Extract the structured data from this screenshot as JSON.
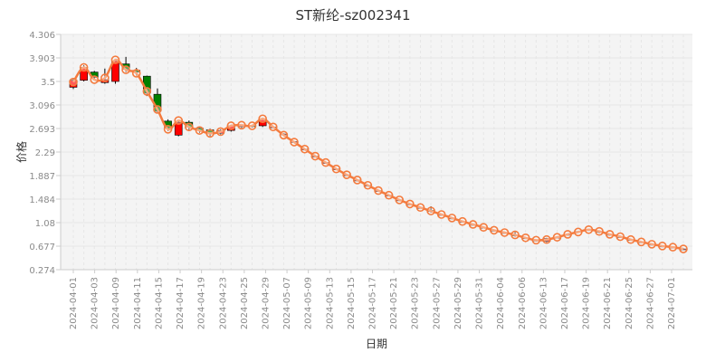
{
  "chart_data": {
    "type": "candlestick",
    "title": "ST新纶-sz002341",
    "xlabel": "日期",
    "ylabel": "价格",
    "ylim": [
      0.274,
      4.306
    ],
    "y_ticks": [
      "4.306",
      "3.903",
      "3.5",
      "3.096",
      "2.693",
      "2.29",
      "1.887",
      "1.484",
      "1.08",
      "0.677",
      "0.274"
    ],
    "x_tick_labels": [
      "2024-04-01",
      "2024-04-03",
      "2024-04-09",
      "2024-04-11",
      "2024-04-15",
      "2024-04-17",
      "2024-04-19",
      "2024-04-23",
      "2024-04-25",
      "2024-04-29",
      "2024-05-07",
      "2024-05-09",
      "2024-05-13",
      "2024-05-15",
      "2024-05-17",
      "2024-05-21",
      "2024-05-23",
      "2024-05-27",
      "2024-05-29",
      "2024-05-31",
      "2024-06-04",
      "2024-06-06",
      "2024-06-13",
      "2024-06-17",
      "2024-06-19",
      "2024-06-21",
      "2024-06-25",
      "2024-06-27",
      "2024-07-01"
    ],
    "colors": {
      "up": "#ff0000",
      "down": "#008000",
      "line": "#f47b3e",
      "grid": "#e6e6e6",
      "plot_bg": "#f4f4f4"
    },
    "ohlc": [
      [
        3.4,
        3.52,
        3.37,
        3.55
      ],
      [
        3.52,
        3.74,
        3.5,
        3.78
      ],
      [
        3.66,
        3.57,
        3.53,
        3.68
      ],
      [
        3.48,
        3.53,
        3.46,
        3.72
      ],
      [
        3.5,
        3.85,
        3.46,
        3.88
      ],
      [
        3.8,
        3.71,
        3.66,
        3.92
      ],
      [
        3.69,
        3.66,
        3.6,
        3.73
      ],
      [
        3.59,
        3.3,
        3.25,
        3.6
      ],
      [
        3.28,
        2.99,
        2.96,
        3.38
      ],
      [
        2.82,
        2.7,
        2.65,
        2.85
      ],
      [
        2.58,
        2.8,
        2.56,
        2.83
      ],
      [
        2.8,
        2.72,
        2.66,
        2.83
      ],
      [
        2.7,
        2.66,
        2.62,
        2.72
      ],
      [
        2.67,
        2.6,
        2.56,
        2.69
      ],
      [
        2.61,
        2.66,
        2.59,
        2.68
      ],
      [
        2.66,
        2.74,
        2.64,
        2.76
      ],
      [
        2.73,
        2.74,
        2.7,
        2.76
      ],
      [
        2.74,
        2.73,
        2.71,
        2.75
      ],
      [
        2.74,
        2.86,
        2.72,
        2.88
      ],
      [
        2.72,
        2.72,
        2.7,
        2.73
      ],
      [
        2.6,
        2.6,
        2.58,
        2.61
      ],
      [
        2.47,
        2.47,
        2.45,
        2.48
      ],
      [
        2.34,
        2.34,
        2.32,
        2.35
      ],
      [
        2.22,
        2.22,
        2.2,
        2.23
      ],
      [
        2.11,
        2.11,
        2.09,
        2.12
      ],
      [
        2.0,
        2.0,
        1.98,
        2.01
      ],
      [
        1.9,
        1.9,
        1.88,
        1.91
      ],
      [
        1.81,
        1.81,
        1.79,
        1.82
      ],
      [
        1.72,
        1.72,
        1.7,
        1.73
      ],
      [
        1.63,
        1.63,
        1.61,
        1.64
      ],
      [
        1.55,
        1.55,
        1.53,
        1.56
      ],
      [
        1.47,
        1.47,
        1.45,
        1.48
      ],
      [
        1.4,
        1.4,
        1.38,
        1.41
      ],
      [
        1.34,
        1.34,
        1.32,
        1.35
      ],
      [
        1.29,
        1.27,
        1.25,
        1.36
      ],
      [
        1.22,
        1.22,
        1.2,
        1.23
      ],
      [
        1.16,
        1.16,
        1.14,
        1.17
      ],
      [
        1.1,
        1.1,
        1.08,
        1.11
      ],
      [
        1.05,
        1.05,
        1.03,
        1.06
      ],
      [
        1.0,
        1.0,
        0.98,
        1.01
      ],
      [
        0.95,
        0.95,
        0.93,
        0.96
      ],
      [
        0.91,
        0.91,
        0.89,
        0.92
      ],
      [
        0.87,
        0.86,
        0.84,
        0.92
      ],
      [
        0.82,
        0.82,
        0.8,
        0.83
      ],
      [
        0.78,
        0.78,
        0.76,
        0.79
      ],
      [
        0.76,
        0.81,
        0.74,
        0.82
      ],
      [
        0.83,
        0.83,
        0.81,
        0.84
      ],
      [
        0.88,
        0.88,
        0.86,
        0.89
      ],
      [
        0.93,
        0.93,
        0.91,
        0.94
      ],
      [
        0.96,
        0.96,
        0.94,
        0.97
      ],
      [
        0.93,
        0.92,
        0.9,
        0.95
      ],
      [
        0.88,
        0.88,
        0.86,
        0.89
      ],
      [
        0.84,
        0.84,
        0.82,
        0.85
      ],
      [
        0.79,
        0.79,
        0.77,
        0.8
      ],
      [
        0.75,
        0.75,
        0.73,
        0.76
      ],
      [
        0.71,
        0.71,
        0.69,
        0.72
      ],
      [
        0.68,
        0.68,
        0.66,
        0.69
      ],
      [
        0.66,
        0.66,
        0.64,
        0.67
      ],
      [
        0.63,
        0.63,
        0.61,
        0.64
      ]
    ],
    "line": [
      3.49,
      3.74,
      3.53,
      3.56,
      3.87,
      3.7,
      3.64,
      3.33,
      3.02,
      2.68,
      2.83,
      2.72,
      2.66,
      2.61,
      2.64,
      2.74,
      2.75,
      2.74,
      2.86,
      2.72,
      2.58,
      2.46,
      2.34,
      2.22,
      2.11,
      2.0,
      1.9,
      1.81,
      1.72,
      1.63,
      1.55,
      1.47,
      1.4,
      1.34,
      1.28,
      1.22,
      1.16,
      1.1,
      1.05,
      1.0,
      0.95,
      0.91,
      0.87,
      0.82,
      0.78,
      0.79,
      0.83,
      0.88,
      0.92,
      0.96,
      0.93,
      0.88,
      0.84,
      0.79,
      0.75,
      0.71,
      0.68,
      0.66,
      0.63
    ]
  }
}
